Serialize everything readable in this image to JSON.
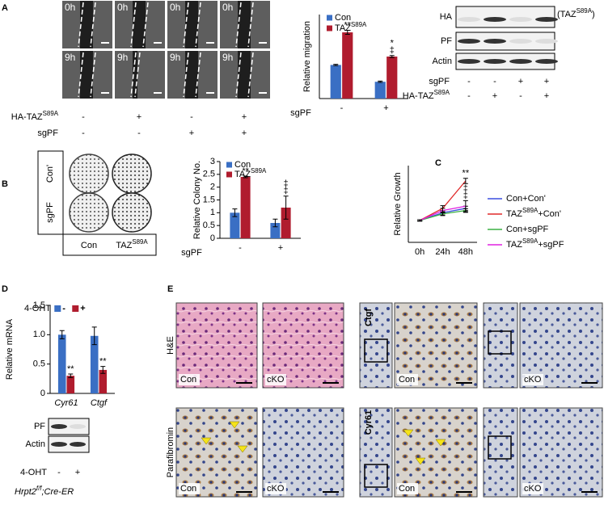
{
  "panel_letters": [
    "A",
    "B",
    "C",
    "D",
    "E"
  ],
  "panel_a": {
    "times": [
      "0h",
      "9h"
    ],
    "conditions": [
      {
        "label": {
          "text": "HA-TAZ",
          "sup": "S89A"
        },
        "signs": [
          "-",
          "+",
          "-",
          "+"
        ]
      },
      {
        "label": "sgPF",
        "signs": [
          "-",
          "-",
          "+",
          "+"
        ]
      }
    ],
    "blot": {
      "bands": [
        "HA",
        "PF",
        "Actin"
      ],
      "band_note": {
        "text": "(TAZ",
        "sup": "S89A",
        "post": ")"
      },
      "conditions": [
        {
          "label": "sgPF",
          "signs": [
            "-",
            "-",
            "+",
            "+"
          ]
        },
        {
          "label": {
            "text": "HA-TAZ",
            "sup": "S89A"
          },
          "signs": [
            "-",
            "+",
            "-",
            "+"
          ]
        }
      ]
    }
  },
  "panel_b": {
    "rows": [
      "Con'",
      "sgPF"
    ],
    "columns": [
      "Con",
      {
        "text": "TAZ",
        "sup": "S89A"
      }
    ]
  },
  "panel_d": {
    "blot": {
      "bands": [
        "PF",
        "Actin"
      ],
      "treatment": "4-OHT",
      "signs": [
        "-",
        "+"
      ]
    },
    "genotype": {
      "text": "Hrpt2",
      "sup": "f/f",
      "post": ";Cre-ER"
    }
  },
  "panel_e": {
    "rows": [
      "H&E",
      "Parafibromin"
    ],
    "stains": [
      "Ctgf",
      "Cyr61"
    ],
    "groups": [
      "Con",
      "cKO"
    ]
  },
  "chart_data": [
    {
      "type": "bar",
      "y_label": "Relative migration",
      "x_label": "sgPF",
      "categories": [
        "-",
        "+"
      ],
      "ylim": [
        0,
        2.5
      ],
      "series": [
        {
          "name": "Con",
          "color": "#3a6fc4",
          "values": [
            1.0,
            0.5
          ],
          "errors": [
            0.02,
            0.02
          ]
        },
        {
          "name": {
            "text": "TAZ",
            "sup": "S89A"
          },
          "color": "#b01c2e",
          "values": [
            1.97,
            1.25
          ],
          "errors": [
            0.06,
            0.03
          ],
          "annotations": [
            [
              "**"
            ],
            [
              "*",
              "‡"
            ]
          ]
        }
      ]
    },
    {
      "type": "bar",
      "y_label": "Relative Colony No.",
      "x_label": "sgPF",
      "categories": [
        "-",
        "+"
      ],
      "ylim": [
        0,
        3
      ],
      "yticks": [
        0,
        0.5,
        1,
        1.5,
        2,
        2.5,
        3
      ],
      "series": [
        {
          "name": "Con",
          "color": "#3a6fc4",
          "values": [
            1.0,
            0.6
          ],
          "errors": [
            0.15,
            0.15
          ]
        },
        {
          "name": {
            "text": "TAZ",
            "sup": "S89A"
          },
          "color": "#b01c2e",
          "values": [
            2.4,
            1.2
          ],
          "errors": [
            0.03,
            0.45
          ],
          "annotations": [
            [
              "**"
            ],
            [
              "‡",
              "‡"
            ]
          ]
        }
      ]
    },
    {
      "type": "line",
      "y_label": "Relative Growth",
      "categories": [
        "0h",
        "24h",
        "48h"
      ],
      "ylim": [
        0,
        3.5
      ],
      "series": [
        {
          "name": "Con+Con'",
          "color": "#3b4fe0",
          "values": [
            1.0,
            1.35,
            1.55
          ],
          "errors": [
            0.03,
            0.1,
            0.1
          ]
        },
        {
          "name": {
            "text": "TAZ",
            "sup": "S89A",
            "post": "+Con'"
          },
          "color": "#e02a2a",
          "values": [
            1.0,
            1.55,
            2.8
          ],
          "errors": [
            0.03,
            0.12,
            0.12
          ],
          "annotations": [
            null,
            null,
            [
              "**"
            ]
          ]
        },
        {
          "name": "Con+sgPF",
          "color": "#3cb043",
          "values": [
            1.0,
            1.3,
            1.45
          ],
          "errors": [
            0.03,
            0.08,
            0.08
          ]
        },
        {
          "name": {
            "text": "TAZ",
            "sup": "S89A",
            "post": "+sgPF"
          },
          "color": "#e020e0",
          "values": [
            1.0,
            1.45,
            1.65
          ],
          "errors": [
            0.03,
            0.1,
            0.25
          ],
          "annotations": [
            null,
            null,
            [
              "‡",
              "‡"
            ]
          ]
        }
      ]
    },
    {
      "type": "bar",
      "y_label": "Relative mRNA",
      "categories": [
        "Cyr61",
        "Ctgf"
      ],
      "italic_categories": true,
      "ylim": [
        0,
        1.5
      ],
      "yticks": [
        0,
        0.5,
        {
          "value": 1,
          "label": "1.0"
        },
        1.5
      ],
      "legend_title": "4-OHT",
      "series": [
        {
          "name": "-",
          "color": "#3a6fc4",
          "values": [
            1.0,
            0.98
          ],
          "errors": [
            0.07,
            0.15
          ]
        },
        {
          "name": "+",
          "color": "#b01c2e",
          "values": [
            0.3,
            0.4
          ],
          "errors": [
            0.03,
            0.06
          ],
          "annotations": [
            [
              "**"
            ],
            [
              "**"
            ]
          ]
        }
      ]
    }
  ]
}
